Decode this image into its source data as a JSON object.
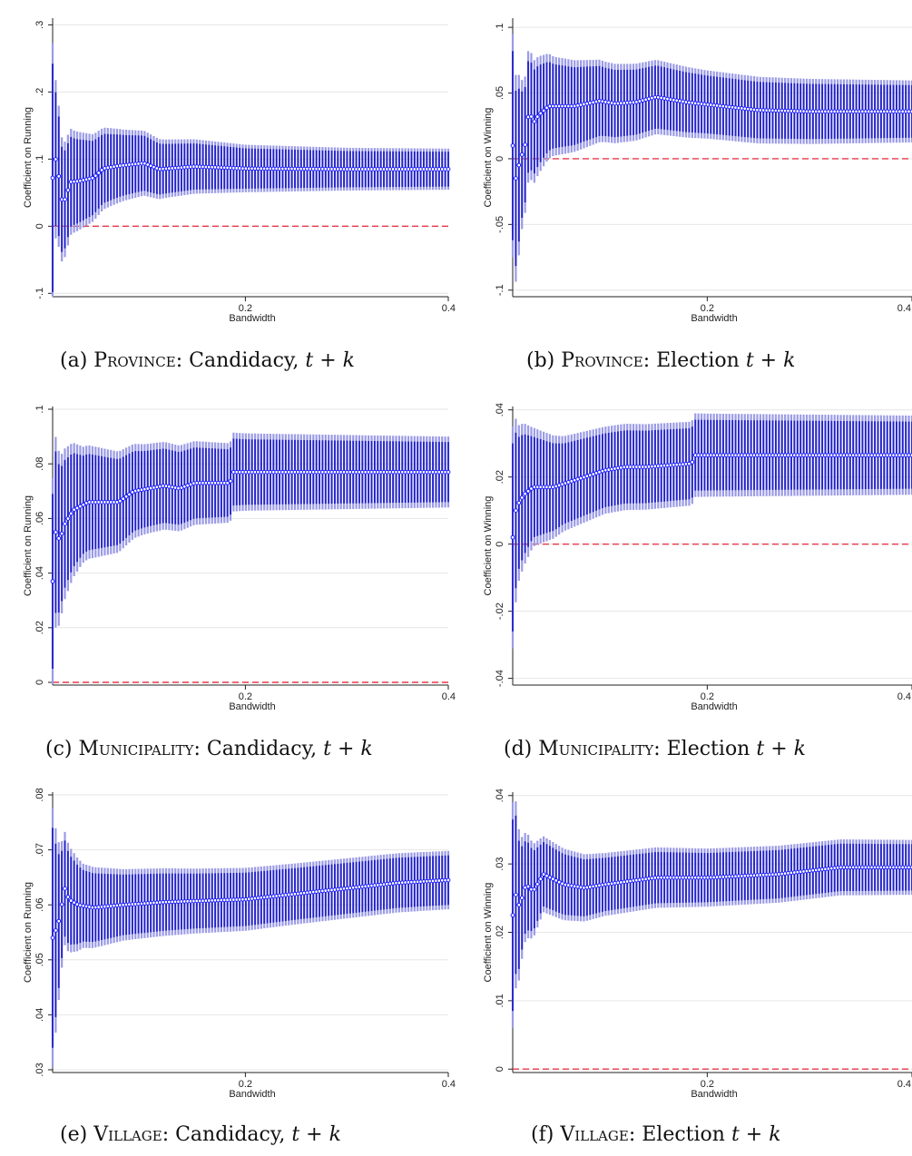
{
  "figure": {
    "panels": [
      {
        "id": "a",
        "caption_prefix": "(a) ",
        "caption_unit": "Province",
        "caption_rest": ": Candidacy, ",
        "caption_math": "t + k"
      },
      {
        "id": "b",
        "caption_prefix": "(b) ",
        "caption_unit": "Province",
        "caption_rest": ": Election ",
        "caption_math": "t + k"
      },
      {
        "id": "c",
        "caption_prefix": "(c) ",
        "caption_unit": "Municipality",
        "caption_rest": ": Candidacy, ",
        "caption_math": "t + k"
      },
      {
        "id": "d",
        "caption_prefix": "(d) ",
        "caption_unit": "Municipality",
        "caption_rest": ": Election ",
        "caption_math": "t + k"
      },
      {
        "id": "e",
        "caption_prefix": "(e) ",
        "caption_unit": "Village",
        "caption_rest": ": Candidacy, ",
        "caption_math": "t + k"
      },
      {
        "id": "f",
        "caption_prefix": "(f) ",
        "caption_unit": "Village",
        "caption_rest": ": Election ",
        "caption_math": "t + k"
      }
    ]
  },
  "colors": {
    "estimate": "#1a1aff",
    "ci95": "#2020c8",
    "ci90": "#9b9be6",
    "zero_line": "#e8384a",
    "grid": "#e6e6e6",
    "axis": "#222222"
  },
  "chart_data": [
    {
      "type": "scatter",
      "id": "a",
      "xlabel": "Bandwidth",
      "ylabel": "Coefficient on Running",
      "xticks": [
        "0.2",
        "0.4"
      ],
      "xtick_values": [
        0.2,
        0.4
      ],
      "xlim": [
        0.01,
        0.4
      ],
      "yticks": [
        "-.1",
        "0",
        ".1",
        ".2",
        ".3"
      ],
      "ytick_values": [
        -0.1,
        0,
        0.1,
        0.2,
        0.3
      ],
      "ylim": [
        -0.105,
        0.31
      ],
      "reference_line": 0,
      "n_points": 130,
      "estimate_knots": [
        [
          0.01,
          0.072
        ],
        [
          0.013,
          0.1
        ],
        [
          0.016,
          0.075
        ],
        [
          0.019,
          0.04
        ],
        [
          0.023,
          0.04
        ],
        [
          0.027,
          0.066
        ],
        [
          0.035,
          0.067
        ],
        [
          0.05,
          0.072
        ],
        [
          0.06,
          0.086
        ],
        [
          0.075,
          0.09
        ],
        [
          0.1,
          0.094
        ],
        [
          0.115,
          0.085
        ],
        [
          0.15,
          0.089
        ],
        [
          0.2,
          0.086
        ],
        [
          0.3,
          0.085
        ],
        [
          0.4,
          0.085
        ]
      ],
      "ci95_halfwidth_knots": [
        [
          0.01,
          0.17
        ],
        [
          0.013,
          0.1
        ],
        [
          0.02,
          0.075
        ],
        [
          0.03,
          0.065
        ],
        [
          0.05,
          0.055
        ],
        [
          0.08,
          0.045
        ],
        [
          0.12,
          0.037
        ],
        [
          0.2,
          0.03
        ],
        [
          0.3,
          0.027
        ],
        [
          0.4,
          0.026
        ]
      ]
    },
    {
      "type": "scatter",
      "id": "b",
      "xlabel": "Bandwidth",
      "ylabel": "Coefficient on Winning",
      "xticks": [
        "0.2",
        "0.4"
      ],
      "xtick_values": [
        0.2,
        0.4
      ],
      "xlim": [
        0.01,
        0.4
      ],
      "yticks": [
        "-.1",
        "-.05",
        "0",
        ".05",
        ".1"
      ],
      "ytick_values": [
        -0.1,
        -0.05,
        0,
        0.05,
        0.1
      ],
      "ylim": [
        -0.105,
        0.107
      ],
      "reference_line": 0,
      "n_points": 130,
      "estimate_knots": [
        [
          0.01,
          0.01
        ],
        [
          0.013,
          -0.015
        ],
        [
          0.016,
          -0.005
        ],
        [
          0.019,
          0.003
        ],
        [
          0.022,
          0.01
        ],
        [
          0.026,
          0.038
        ],
        [
          0.03,
          0.027
        ],
        [
          0.035,
          0.033
        ],
        [
          0.045,
          0.04
        ],
        [
          0.07,
          0.04
        ],
        [
          0.095,
          0.044
        ],
        [
          0.11,
          0.042
        ],
        [
          0.13,
          0.043
        ],
        [
          0.15,
          0.047
        ],
        [
          0.18,
          0.043
        ],
        [
          0.25,
          0.037
        ],
        [
          0.3,
          0.036
        ],
        [
          0.4,
          0.036
        ]
      ],
      "ci95_halfwidth_knots": [
        [
          0.01,
          0.072
        ],
        [
          0.014,
          0.065
        ],
        [
          0.02,
          0.045
        ],
        [
          0.03,
          0.04
        ],
        [
          0.05,
          0.032
        ],
        [
          0.1,
          0.026
        ],
        [
          0.2,
          0.022
        ],
        [
          0.3,
          0.021
        ],
        [
          0.4,
          0.02
        ]
      ]
    },
    {
      "type": "scatter",
      "id": "c",
      "xlabel": "Bandwidth",
      "ylabel": "Coefficient on Running",
      "xticks": [
        "0.2",
        "0.4"
      ],
      "xtick_values": [
        0.2,
        0.4
      ],
      "xlim": [
        0.01,
        0.4
      ],
      "yticks": [
        "0",
        ".02",
        ".04",
        ".06",
        ".08",
        ".1"
      ],
      "ytick_values": [
        0,
        0.02,
        0.04,
        0.06,
        0.08,
        0.1
      ],
      "ylim": [
        -0.001,
        0.101
      ],
      "reference_line": 0,
      "n_points": 130,
      "estimate_knots": [
        [
          0.01,
          0.037
        ],
        [
          0.013,
          0.055
        ],
        [
          0.017,
          0.052
        ],
        [
          0.022,
          0.058
        ],
        [
          0.03,
          0.063
        ],
        [
          0.045,
          0.066
        ],
        [
          0.06,
          0.066
        ],
        [
          0.075,
          0.066
        ],
        [
          0.09,
          0.07
        ],
        [
          0.12,
          0.072
        ],
        [
          0.135,
          0.071
        ],
        [
          0.15,
          0.073
        ],
        [
          0.185,
          0.073
        ],
        [
          0.187,
          0.077
        ],
        [
          0.4,
          0.077
        ]
      ],
      "ci95_halfwidth_knots": [
        [
          0.01,
          0.032
        ],
        [
          0.02,
          0.024
        ],
        [
          0.04,
          0.018
        ],
        [
          0.1,
          0.014
        ],
        [
          0.2,
          0.012
        ],
        [
          0.4,
          0.011
        ]
      ]
    },
    {
      "type": "scatter",
      "id": "d",
      "xlabel": "Bandwidth",
      "ylabel": "Coefficient on Winning",
      "xticks": [
        "0.2",
        "0.4"
      ],
      "xtick_values": [
        0.2,
        0.4
      ],
      "xlim": [
        0.01,
        0.4
      ],
      "yticks": [
        "-.04",
        "-.02",
        "0",
        ".02",
        ".04"
      ],
      "ytick_values": [
        -0.04,
        -0.02,
        0,
        0.02,
        0.04
      ],
      "ylim": [
        -0.042,
        0.041
      ],
      "reference_line": 0,
      "n_points": 130,
      "estimate_knots": [
        [
          0.01,
          0.002
        ],
        [
          0.013,
          0.01
        ],
        [
          0.017,
          0.013
        ],
        [
          0.022,
          0.015
        ],
        [
          0.03,
          0.017
        ],
        [
          0.05,
          0.017
        ],
        [
          0.07,
          0.019
        ],
        [
          0.1,
          0.022
        ],
        [
          0.12,
          0.023
        ],
        [
          0.14,
          0.023
        ],
        [
          0.185,
          0.024
        ],
        [
          0.187,
          0.0265
        ],
        [
          0.4,
          0.0265
        ]
      ],
      "ci95_halfwidth_knots": [
        [
          0.01,
          0.028
        ],
        [
          0.015,
          0.02
        ],
        [
          0.03,
          0.015
        ],
        [
          0.06,
          0.012
        ],
        [
          0.1,
          0.011
        ],
        [
          0.2,
          0.0105
        ],
        [
          0.4,
          0.01
        ]
      ]
    },
    {
      "type": "scatter",
      "id": "e",
      "xlabel": "Bandwidth",
      "ylabel": "Coefficient on Running",
      "xticks": [
        "0.2",
        "0.4"
      ],
      "xtick_values": [
        0.2,
        0.4
      ],
      "xlim": [
        0.01,
        0.4
      ],
      "yticks": [
        ".03",
        ".04",
        ".05",
        ".06",
        ".07",
        ".08"
      ],
      "ytick_values": [
        0.03,
        0.04,
        0.05,
        0.06,
        0.07,
        0.08
      ],
      "ylim": [
        0.0295,
        0.0805
      ],
      "reference_line": 0,
      "n_points": 130,
      "estimate_knots": [
        [
          0.01,
          0.054
        ],
        [
          0.012,
          0.055
        ],
        [
          0.015,
          0.056
        ],
        [
          0.018,
          0.059
        ],
        [
          0.022,
          0.063
        ],
        [
          0.026,
          0.061
        ],
        [
          0.035,
          0.06
        ],
        [
          0.05,
          0.0595
        ],
        [
          0.08,
          0.06
        ],
        [
          0.12,
          0.0605
        ],
        [
          0.2,
          0.061
        ],
        [
          0.3,
          0.063
        ],
        [
          0.35,
          0.064
        ],
        [
          0.4,
          0.0645
        ]
      ],
      "ci95_halfwidth_knots": [
        [
          0.01,
          0.02
        ],
        [
          0.015,
          0.013
        ],
        [
          0.02,
          0.009
        ],
        [
          0.04,
          0.0065
        ],
        [
          0.08,
          0.0055
        ],
        [
          0.15,
          0.005
        ],
        [
          0.25,
          0.0047
        ],
        [
          0.4,
          0.0045
        ]
      ]
    },
    {
      "type": "scatter",
      "id": "f",
      "xlabel": "Bandwidth",
      "ylabel": "Coefficient on Winning",
      "xticks": [
        "0.2",
        "0.4"
      ],
      "xtick_values": [
        0.2,
        0.4
      ],
      "xlim": [
        0.01,
        0.4
      ],
      "yticks": [
        "0",
        ".01",
        ".02",
        ".03",
        ".04"
      ],
      "ytick_values": [
        0,
        0.01,
        0.02,
        0.03,
        0.04
      ],
      "ylim": [
        -0.0005,
        0.0405
      ],
      "reference_line": 0,
      "n_points": 130,
      "estimate_knots": [
        [
          0.01,
          0.0225
        ],
        [
          0.013,
          0.0255
        ],
        [
          0.016,
          0.024
        ],
        [
          0.019,
          0.025
        ],
        [
          0.023,
          0.027
        ],
        [
          0.03,
          0.026
        ],
        [
          0.04,
          0.0285
        ],
        [
          0.06,
          0.027
        ],
        [
          0.08,
          0.0265
        ],
        [
          0.1,
          0.027
        ],
        [
          0.15,
          0.028
        ],
        [
          0.2,
          0.028
        ],
        [
          0.27,
          0.0285
        ],
        [
          0.33,
          0.0295
        ],
        [
          0.4,
          0.0295
        ]
      ],
      "ci95_halfwidth_knots": [
        [
          0.01,
          0.014
        ],
        [
          0.015,
          0.01
        ],
        [
          0.02,
          0.007
        ],
        [
          0.04,
          0.0047
        ],
        [
          0.1,
          0.0039
        ],
        [
          0.2,
          0.0036
        ],
        [
          0.4,
          0.0034
        ]
      ]
    }
  ]
}
